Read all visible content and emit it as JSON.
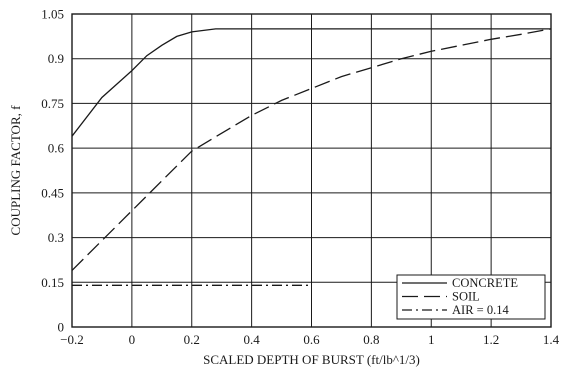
{
  "chart_data": {
    "type": "line",
    "xlabel": "SCALED DEPTH OF BURST (ft/lb^1/3)",
    "ylabel": "COUPLING FACTOR, f",
    "xlim": [
      -0.2,
      1.4
    ],
    "ylim": [
      0,
      1.05
    ],
    "x_ticks": [
      -0.2,
      0,
      0.2,
      0.4,
      0.6,
      0.8,
      1,
      1.2,
      1.4
    ],
    "x_tick_labels": [
      "−0.2",
      "0",
      "0.2",
      "0.4",
      "0.6",
      "0.8",
      "1",
      "1.2",
      "1.4"
    ],
    "y_ticks": [
      0,
      0.15,
      0.3,
      0.45,
      0.6,
      0.75,
      0.9,
      1.05
    ],
    "y_tick_labels": [
      "0",
      "0.15",
      "0.3",
      "0.45",
      "0.6",
      "0.75",
      "0.9",
      "1.05"
    ],
    "grid": true,
    "legend_position": "bottom-right",
    "series": [
      {
        "name": "CONCRETE",
        "dash": "solid",
        "points": [
          [
            -0.2,
            0.64
          ],
          [
            -0.1,
            0.77
          ],
          [
            0,
            0.86
          ],
          [
            0.05,
            0.91
          ],
          [
            0.1,
            0.945
          ],
          [
            0.15,
            0.975
          ],
          [
            0.2,
            0.99
          ],
          [
            0.28,
            1.0
          ],
          [
            1.4,
            1.0
          ]
        ]
      },
      {
        "name": "SOIL",
        "dash": "long-dash",
        "points": [
          [
            -0.2,
            0.19
          ],
          [
            -0.1,
            0.29
          ],
          [
            0,
            0.39
          ],
          [
            0.1,
            0.49
          ],
          [
            0.2,
            0.59
          ],
          [
            0.3,
            0.65
          ],
          [
            0.4,
            0.71
          ],
          [
            0.5,
            0.76
          ],
          [
            0.6,
            0.8
          ],
          [
            0.7,
            0.84
          ],
          [
            0.8,
            0.87
          ],
          [
            0.9,
            0.9
          ],
          [
            1.0,
            0.925
          ],
          [
            1.1,
            0.945
          ],
          [
            1.2,
            0.965
          ],
          [
            1.3,
            0.982
          ],
          [
            1.4,
            1.0
          ]
        ]
      },
      {
        "name": "AIR = 0.14",
        "dash": "dash-dot",
        "points": [
          [
            -0.2,
            0.14
          ],
          [
            0.6,
            0.14
          ]
        ]
      }
    ]
  }
}
